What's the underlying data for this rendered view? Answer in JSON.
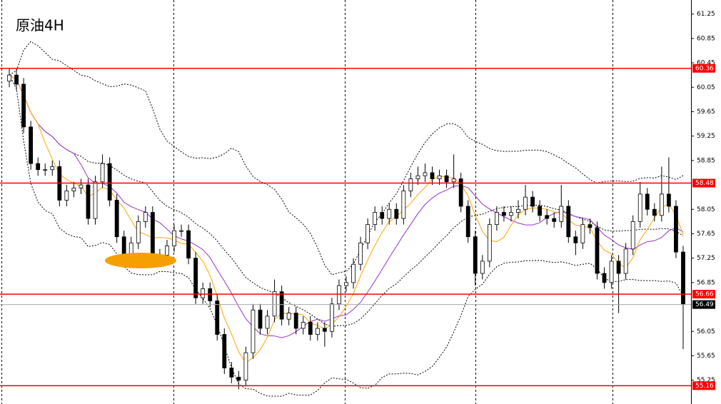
{
  "chart_data": {
    "type": "candlestick",
    "title": "原油4H",
    "open": [
      60.15,
      60.25,
      60.1,
      59.4,
      58.8,
      58.7,
      58.7,
      58.75,
      58.2,
      58.35,
      58.4,
      58.45,
      57.9,
      58.5,
      58.8,
      58.2,
      57.6,
      57.25,
      57.5,
      57.85,
      58.0,
      57.3,
      57.3,
      57.45,
      57.7,
      57.7,
      57.25,
      56.6,
      56.75,
      56.55,
      56.0,
      55.45,
      55.3,
      55.25,
      55.7,
      56.4,
      56.1,
      56.3,
      56.7,
      56.25,
      56.35,
      56.1,
      56.2,
      56.0,
      56.1,
      56.05,
      56.5,
      56.8,
      56.85,
      57.15,
      57.5,
      57.8,
      58.0,
      57.9,
      58.05,
      57.9,
      58.35,
      58.55,
      58.6,
      58.65,
      58.55,
      58.6,
      58.5,
      58.55,
      58.1,
      57.6,
      57.0,
      57.2,
      57.8,
      58.0,
      57.95,
      58.0,
      58.05,
      58.25,
      58.1,
      57.95,
      57.9,
      57.85,
      58.1,
      57.6,
      57.5,
      57.8,
      57.75,
      57.0,
      56.85,
      57.2,
      57.0,
      57.4,
      57.85,
      58.3,
      58.05,
      57.95,
      58.3,
      58.1,
      57.35
    ],
    "high": [
      60.35,
      60.35,
      60.2,
      59.5,
      58.9,
      58.8,
      58.85,
      58.85,
      58.45,
      58.5,
      58.55,
      58.55,
      58.6,
      58.95,
      58.9,
      58.3,
      57.7,
      57.6,
      57.95,
      58.1,
      58.1,
      57.4,
      57.55,
      57.8,
      57.8,
      57.8,
      57.35,
      56.85,
      56.85,
      56.65,
      56.1,
      55.55,
      55.4,
      55.8,
      56.5,
      56.5,
      56.4,
      56.9,
      56.8,
      56.45,
      56.45,
      56.3,
      56.3,
      56.2,
      56.2,
      56.6,
      56.9,
      56.95,
      57.25,
      57.6,
      57.9,
      58.1,
      58.1,
      58.15,
      58.15,
      58.45,
      58.65,
      58.75,
      58.8,
      58.75,
      58.7,
      58.7,
      58.95,
      58.65,
      58.2,
      57.7,
      57.3,
      57.9,
      58.1,
      58.1,
      58.1,
      58.2,
      58.45,
      58.35,
      58.2,
      58.05,
      58.0,
      58.45,
      58.2,
      57.7,
      57.9,
      57.9,
      57.85,
      57.1,
      57.3,
      57.3,
      57.5,
      57.95,
      58.5,
      58.4,
      58.15,
      58.75,
      58.9,
      58.2,
      57.45
    ],
    "low": [
      60.05,
      60.0,
      59.3,
      58.7,
      58.6,
      58.6,
      58.6,
      58.1,
      58.1,
      58.25,
      58.3,
      57.8,
      57.8,
      58.4,
      58.1,
      57.5,
      57.15,
      57.15,
      57.4,
      57.75,
      57.2,
      57.2,
      57.2,
      57.35,
      57.6,
      57.15,
      56.5,
      56.5,
      56.45,
      55.9,
      55.35,
      55.2,
      55.1,
      55.15,
      55.6,
      56.0,
      56.0,
      56.2,
      56.15,
      56.15,
      56.0,
      56.0,
      55.9,
      55.9,
      55.8,
      55.95,
      56.4,
      56.7,
      56.75,
      57.05,
      57.4,
      57.7,
      57.8,
      57.8,
      57.8,
      57.8,
      58.25,
      58.45,
      58.5,
      58.45,
      58.45,
      58.4,
      58.4,
      58.0,
      57.5,
      56.8,
      56.9,
      57.1,
      57.7,
      57.85,
      57.85,
      57.9,
      57.95,
      58.0,
      57.85,
      57.8,
      57.75,
      57.75,
      57.5,
      57.3,
      57.4,
      57.65,
      56.9,
      56.75,
      56.75,
      56.35,
      56.9,
      57.3,
      57.75,
      57.95,
      57.85,
      57.85,
      58.0,
      57.25,
      55.76
    ],
    "close": [
      60.25,
      60.1,
      59.4,
      58.8,
      58.7,
      58.7,
      58.75,
      58.2,
      58.35,
      58.4,
      58.45,
      57.9,
      58.5,
      58.8,
      58.2,
      57.6,
      57.25,
      57.5,
      57.85,
      58.0,
      57.3,
      57.3,
      57.45,
      57.7,
      57.7,
      57.25,
      56.6,
      56.75,
      56.55,
      56.0,
      55.45,
      55.3,
      55.25,
      55.7,
      56.4,
      56.1,
      56.3,
      56.7,
      56.25,
      56.35,
      56.1,
      56.2,
      56.0,
      56.1,
      56.05,
      56.5,
      56.8,
      56.85,
      57.15,
      57.5,
      57.8,
      58.0,
      57.9,
      58.05,
      57.9,
      58.35,
      58.55,
      58.6,
      58.65,
      58.55,
      58.6,
      58.5,
      58.55,
      58.1,
      57.6,
      57.0,
      57.2,
      57.8,
      58.0,
      57.95,
      58.0,
      58.05,
      58.25,
      58.1,
      57.95,
      57.9,
      57.85,
      58.1,
      57.6,
      57.5,
      57.8,
      57.75,
      57.0,
      56.85,
      57.2,
      57.0,
      57.4,
      57.85,
      58.3,
      58.05,
      57.95,
      58.3,
      58.1,
      57.35,
      56.49
    ],
    "ylim": [
      54.86,
      61.48
    ],
    "yticks": [
      61.25,
      60.85,
      60.45,
      60.05,
      59.65,
      59.25,
      58.85,
      58.05,
      57.65,
      57.25,
      56.85,
      56.05,
      55.65,
      55.25
    ],
    "levels": [
      60.36,
      58.48,
      56.66,
      55.16
    ],
    "level_color": "#ff0000",
    "current_price": 56.49,
    "up_color": "#ffffff",
    "down_color": "#000000"
  }
}
